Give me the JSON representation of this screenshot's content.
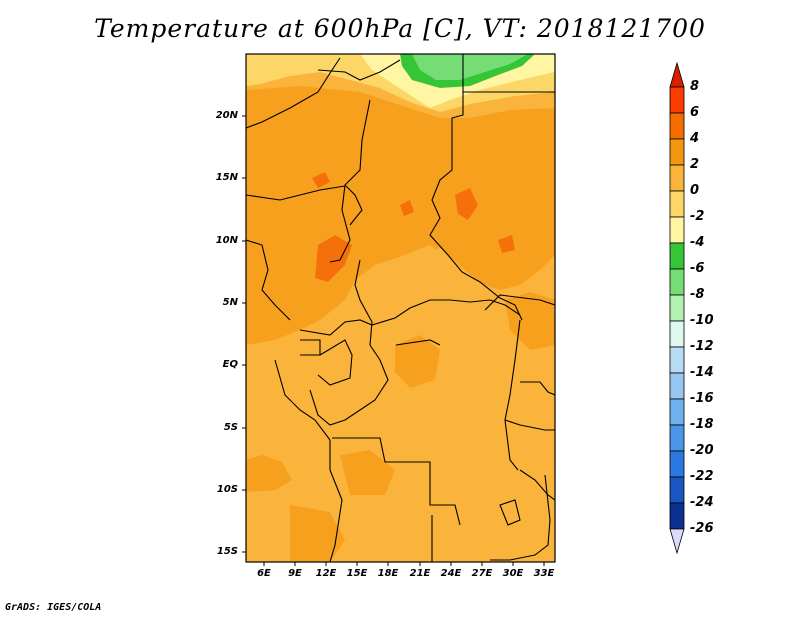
{
  "title": "Temperature at 600hPa [C], VT: 2018121700",
  "footer": "GrADS: IGES/COLA",
  "map": {
    "lat_labels": [
      "20N",
      "15N",
      "10N",
      "5N",
      "EQ",
      "5S",
      "10S",
      "15S"
    ],
    "lon_labels": [
      "6E",
      "9E",
      "12E",
      "15E",
      "18E",
      "21E",
      "24E",
      "27E",
      "30E",
      "33E"
    ],
    "lat_range": [
      -16,
      24.5
    ],
    "lon_range": [
      3,
      34
    ]
  },
  "colorbar": {
    "labels": [
      "8",
      "6",
      "4",
      "2",
      "0",
      "-2",
      "-4",
      "-6",
      "-8",
      "-10",
      "-12",
      "-14",
      "-16",
      "-18",
      "-20",
      "-22",
      "-24",
      "-26"
    ],
    "colors": [
      "#e41a00",
      "#fa3c00",
      "#f56d00",
      "#f5960f",
      "#fab43c",
      "#fcd767",
      "#fff5a3",
      "#36c536",
      "#76dd76",
      "#b1f2b1",
      "#dff8ef",
      "#b8dcf6",
      "#96c7f1",
      "#6fb0ee",
      "#4a96e9",
      "#2b79e0",
      "#1856c2",
      "#0b2f8f",
      "#071b62"
    ],
    "over_color": "#d82000",
    "under_color": "#dcdcfa"
  },
  "colors": {
    "warm_2_4": "#f7a01e",
    "warm_0_2": "#fab43c",
    "mild_m2_0": "#fcd767",
    "cool_m4_m2": "#fff5a3",
    "green_m6": "#36c536",
    "green_m8": "#76dd76",
    "hot_4_6": "#f5700a",
    "boundary": "#000000"
  }
}
